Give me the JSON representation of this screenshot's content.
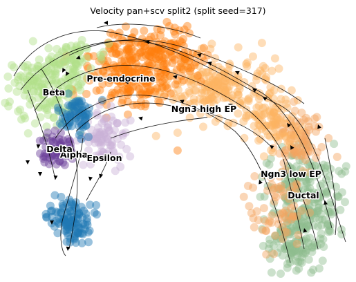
{
  "title": "Velocity pan+scv split2 (split seed=317)",
  "chart_data": {
    "type": "scatter",
    "title": "Velocity pan+scv split2 (split seed=317)",
    "embedding": "UMAP with RNA velocity streamlines",
    "xlabel": "",
    "ylabel": "",
    "axes_visible": false,
    "grid": false,
    "legend": "on data",
    "clusters": [
      {
        "name": "Ductal",
        "color": "#8fbc8f",
        "label": "Ductal"
      },
      {
        "name": "Ngn3 low EP",
        "color": "#f4a460",
        "label": "Ngn3 low EP"
      },
      {
        "name": "Ngn3 high EP",
        "color": "#fdb462",
        "label": "Ngn3 high EP"
      },
      {
        "name": "Pre-endocrine",
        "color": "#ff7f0e",
        "label": "Pre-endocrine"
      },
      {
        "name": "Beta",
        "color": "#b2df8a",
        "label": "Beta"
      },
      {
        "name": "Alpha",
        "color": "#1f78b4",
        "label": "Alpha"
      },
      {
        "name": "Delta",
        "color": "#6a3d9a",
        "label": "Delta"
      },
      {
        "name": "Epsilon",
        "color": "#cab2d6",
        "label": "Epsilon"
      }
    ],
    "streamline_color": "#000000"
  }
}
